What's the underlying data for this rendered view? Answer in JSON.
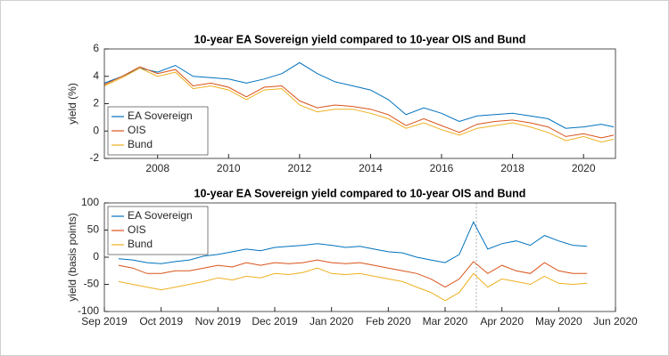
{
  "chart_data": [
    {
      "type": "line",
      "title": "10-year EA Sovereign yield compared to 10-year OIS and Bund",
      "ylabel": "yield (%)",
      "x": [
        2006.5,
        2007,
        2007.5,
        2008,
        2008.5,
        2009,
        2009.5,
        2010,
        2010.5,
        2011,
        2011.5,
        2012,
        2012.5,
        2013,
        2013.5,
        2014,
        2014.5,
        2015,
        2015.5,
        2016,
        2016.5,
        2017,
        2017.5,
        2018,
        2018.5,
        2019,
        2019.5,
        2020,
        2020.5,
        2020.85
      ],
      "series": [
        {
          "name": "EA Sovereign",
          "color": "#0072bd",
          "values": [
            3.5,
            4.0,
            4.6,
            4.3,
            4.8,
            4.0,
            3.9,
            3.8,
            3.5,
            3.8,
            4.2,
            5.0,
            4.2,
            3.6,
            3.3,
            3.0,
            2.3,
            1.2,
            1.7,
            1.3,
            0.7,
            1.1,
            1.2,
            1.3,
            1.1,
            0.9,
            0.2,
            0.3,
            0.5,
            0.3
          ]
        },
        {
          "name": "OIS",
          "color": "#d95319",
          "values": [
            3.4,
            4.0,
            4.7,
            4.2,
            4.5,
            3.3,
            3.5,
            3.2,
            2.5,
            3.2,
            3.3,
            2.2,
            1.7,
            1.9,
            1.8,
            1.6,
            1.2,
            0.4,
            0.9,
            0.4,
            -0.1,
            0.5,
            0.7,
            0.8,
            0.6,
            0.3,
            -0.4,
            -0.2,
            -0.5,
            -0.3
          ]
        },
        {
          "name": "Bund",
          "color": "#edb120",
          "values": [
            3.3,
            3.9,
            4.6,
            4.0,
            4.3,
            3.1,
            3.3,
            3.0,
            2.3,
            3.0,
            3.1,
            1.9,
            1.4,
            1.6,
            1.6,
            1.3,
            0.9,
            0.2,
            0.6,
            0.1,
            -0.3,
            0.2,
            0.4,
            0.6,
            0.3,
            -0.1,
            -0.7,
            -0.4,
            -0.8,
            -0.6
          ]
        }
      ],
      "xlim": [
        2006.5,
        2020.9
      ],
      "xticks": [
        2008,
        2010,
        2012,
        2014,
        2016,
        2018,
        2020
      ],
      "ylim": [
        -2,
        6
      ],
      "yticks": [
        -2,
        0,
        2,
        4,
        6
      ],
      "legend": "south-west"
    },
    {
      "type": "line",
      "title": "10-year EA Sovereign yield compared to 10-year OIS and Bund",
      "ylabel": "yield (basis points)",
      "x": [
        0.25,
        0.5,
        0.75,
        1.0,
        1.25,
        1.5,
        1.75,
        2.0,
        2.25,
        2.5,
        2.75,
        3.0,
        3.25,
        3.5,
        3.75,
        4.0,
        4.25,
        4.5,
        4.75,
        5.0,
        5.25,
        5.5,
        5.75,
        6.0,
        6.25,
        6.5,
        6.75,
        7.0,
        7.25,
        7.5,
        7.75,
        8.0,
        8.25,
        8.5
      ],
      "series": [
        {
          "name": "EA Sovereign",
          "color": "#0072bd",
          "values": [
            -3,
            -5,
            -10,
            -12,
            -8,
            -5,
            2,
            5,
            10,
            15,
            12,
            18,
            20,
            22,
            25,
            22,
            18,
            20,
            15,
            10,
            8,
            0,
            -5,
            -10,
            5,
            65,
            15,
            25,
            30,
            22,
            40,
            30,
            22,
            20
          ]
        },
        {
          "name": "OIS",
          "color": "#d95319",
          "values": [
            -15,
            -20,
            -30,
            -30,
            -25,
            -25,
            -20,
            -15,
            -18,
            -10,
            -15,
            -10,
            -12,
            -10,
            -5,
            -10,
            -12,
            -10,
            -15,
            -20,
            -25,
            -30,
            -40,
            -55,
            -40,
            -8,
            -30,
            -15,
            -25,
            -30,
            -10,
            -25,
            -30,
            -30
          ]
        },
        {
          "name": "Bund",
          "color": "#edb120",
          "values": [
            -45,
            -50,
            -55,
            -60,
            -55,
            -50,
            -45,
            -38,
            -42,
            -35,
            -38,
            -30,
            -32,
            -28,
            -20,
            -30,
            -32,
            -30,
            -35,
            -40,
            -45,
            -55,
            -65,
            -80,
            -65,
            -30,
            -55,
            -40,
            -45,
            -50,
            -35,
            -48,
            -50,
            -48
          ]
        }
      ],
      "reference_x": 6.55,
      "xlim": [
        0,
        9
      ],
      "xticks": [
        {
          "value": 0,
          "label": "Sep 2019"
        },
        {
          "value": 1,
          "label": "Oct 2019"
        },
        {
          "value": 2,
          "label": "Nov 2019"
        },
        {
          "value": 3,
          "label": "Dec 2019"
        },
        {
          "value": 4,
          "label": "Jan 2020"
        },
        {
          "value": 5,
          "label": "Feb 2020"
        },
        {
          "value": 6,
          "label": "Mar 2020"
        },
        {
          "value": 7,
          "label": "Apr 2020"
        },
        {
          "value": 8,
          "label": "May 2020"
        },
        {
          "value": 9,
          "label": "Jun 2020"
        }
      ],
      "ylim": [
        -100,
        100
      ],
      "yticks": [
        -100,
        -50,
        0,
        50,
        100
      ],
      "legend": "north-west"
    }
  ]
}
